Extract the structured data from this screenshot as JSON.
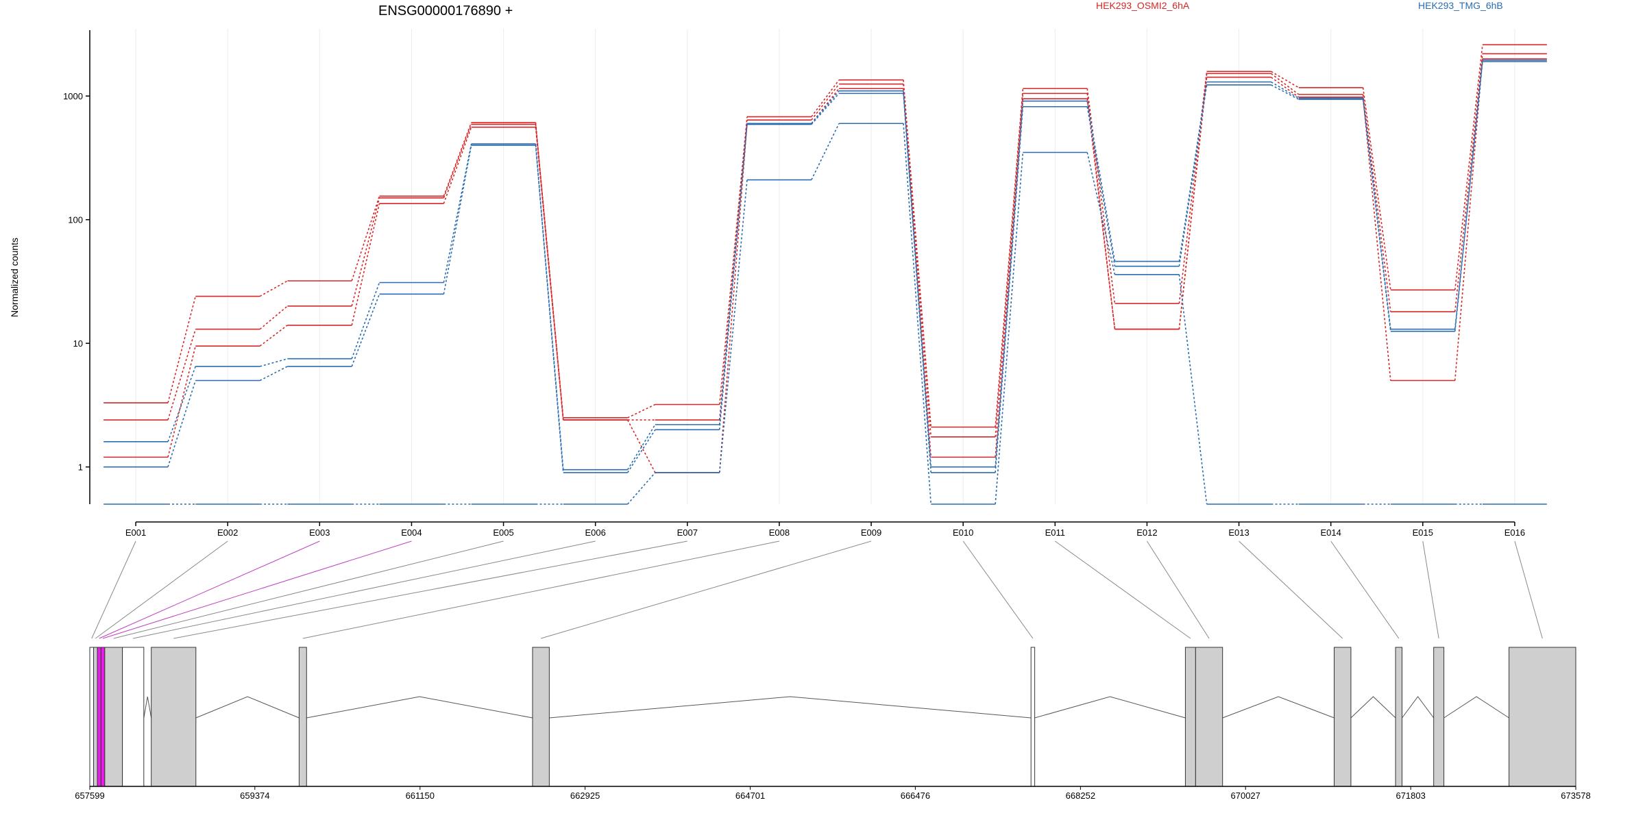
{
  "chart_data": {
    "type": "line",
    "title": "ENSG00000176890 +",
    "ylabel": "Normalized counts",
    "xlabel": "",
    "y_scale": "log",
    "y_ticks": [
      1,
      10,
      100,
      1000
    ],
    "ylim": [
      0.5,
      3500
    ],
    "grid": "vertical",
    "legend_placement": "top-right",
    "legend": [
      {
        "name": "HEK293_OSMI2_6hA",
        "color": "#d62728"
      },
      {
        "name": "HEK293_TMG_6hB",
        "color": "#2b6cb0"
      }
    ],
    "categories": [
      "E001",
      "E002",
      "E003",
      "E004",
      "E005",
      "E006",
      "E007",
      "E008",
      "E009",
      "E010",
      "E011",
      "E012",
      "E013",
      "E014",
      "E015",
      "E016"
    ],
    "series": [
      {
        "group": "HEK293_OSMI2_6hA",
        "color": "#d62728",
        "values": [
          3.3,
          24,
          32,
          155,
          610,
          2.5,
          3.2,
          680,
          1350,
          2.1,
          1150,
          21,
          1580,
          1170,
          27,
          2600
        ]
      },
      {
        "group": "HEK293_OSMI2_6hA",
        "color": "#d62728",
        "values": [
          2.4,
          13,
          20,
          150,
          590,
          2.4,
          2.4,
          640,
          1250,
          1.75,
          1050,
          13,
          1520,
          1030,
          18,
          2200
        ]
      },
      {
        "group": "HEK293_OSMI2_6hA",
        "color": "#d62728",
        "values": [
          1.2,
          9.5,
          14,
          135,
          560,
          2.4,
          0.9,
          600,
          1150,
          1.2,
          950,
          13,
          1420,
          980,
          5,
          2000
        ]
      },
      {
        "group": "HEK293_TMG_6hB",
        "color": "#2b6cb0",
        "values": [
          1.6,
          6.5,
          7.5,
          31,
          410,
          0.95,
          2.2,
          600,
          1100,
          1.0,
          910,
          46,
          1300,
          960,
          13,
          1950
        ]
      },
      {
        "group": "HEK293_TMG_6hB",
        "color": "#2b6cb0",
        "values": [
          1.0,
          5,
          6.5,
          25,
          400,
          0.9,
          2.0,
          590,
          1050,
          0.9,
          820,
          42,
          1230,
          940,
          12.5,
          1900
        ]
      },
      {
        "group": "HEK293_TMG_6hB",
        "color": "#2b6cb0",
        "values": [
          0.5,
          0.5,
          0.5,
          0.5,
          0.5,
          0.5,
          0.9,
          210,
          600,
          0.5,
          350,
          36,
          0.5,
          0.5,
          0.5,
          0.5
        ]
      }
    ],
    "genomic_axis": {
      "ticks": [
        "657599",
        "659374",
        "661150",
        "662925",
        "664701",
        "666476",
        "668252",
        "670027",
        "671803",
        "673578"
      ],
      "range": [
        657599,
        673578
      ]
    },
    "gene_model": {
      "exons": [
        {
          "id": "E001",
          "start": 657599,
          "end": 657640,
          "fill": "#ffffff"
        },
        {
          "id": "E002",
          "start": 657640,
          "end": 657680,
          "fill": "#cfcfcf"
        },
        {
          "id": "E003",
          "start": 657680,
          "end": 657720,
          "fill": "#e61ee6"
        },
        {
          "id": "E004",
          "start": 657720,
          "end": 657760,
          "fill": "#e61ee6"
        },
        {
          "id": "E005",
          "start": 657760,
          "end": 657950,
          "fill": "#cfcfcf"
        },
        {
          "id": "E006",
          "start": 657950,
          "end": 658180,
          "fill": "#ffffff"
        },
        {
          "id": "E007",
          "start": 658260,
          "end": 658740,
          "fill": "#cfcfcf"
        },
        {
          "id": "E008",
          "start": 659850,
          "end": 659930,
          "fill": "#cfcfcf"
        },
        {
          "id": "E009",
          "start": 662360,
          "end": 662540,
          "fill": "#cfcfcf"
        },
        {
          "id": "E010",
          "start": 667720,
          "end": 667760,
          "fill": "#ffffff"
        },
        {
          "id": "E011",
          "start": 669380,
          "end": 669490,
          "fill": "#cfcfcf"
        },
        {
          "id": "E012",
          "start": 669490,
          "end": 669780,
          "fill": "#cfcfcf"
        },
        {
          "id": "E013",
          "start": 670980,
          "end": 671160,
          "fill": "#cfcfcf"
        },
        {
          "id": "E014",
          "start": 671640,
          "end": 671710,
          "fill": "#cfcfcf"
        },
        {
          "id": "E015",
          "start": 672050,
          "end": 672160,
          "fill": "#cfcfcf"
        },
        {
          "id": "E016",
          "start": 672860,
          "end": 673578,
          "fill": "#cfcfcf"
        }
      ]
    }
  }
}
